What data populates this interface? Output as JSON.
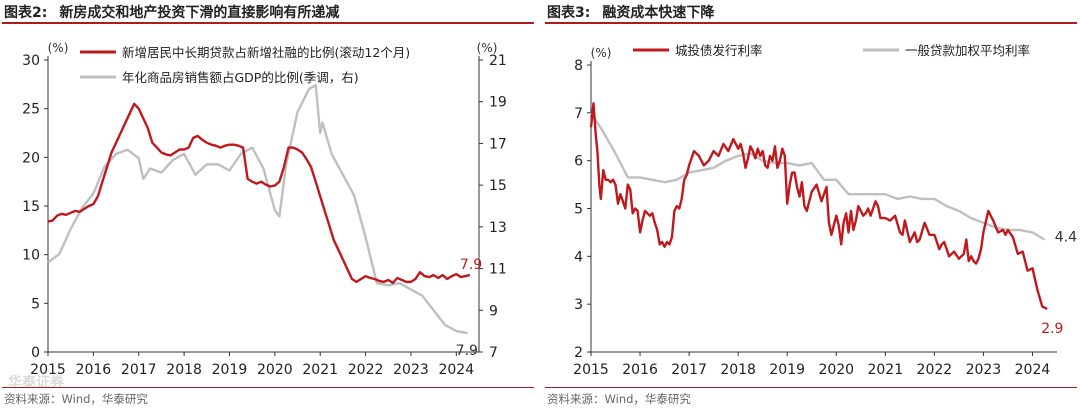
{
  "colors": {
    "red": "#c0191d",
    "gray": "#bfbfbf",
    "accent": "#b01c1c"
  },
  "watermark": "华泰证券",
  "chart_data": [
    {
      "type": "line",
      "fig_no": "图表2:",
      "title": "新房成交和地产投资下滑的直接影响有所递减",
      "source": "资料来源：Wind，华泰研究",
      "x_ticks": [
        "2015",
        "2016",
        "2017",
        "2018",
        "2019",
        "2020",
        "2021",
        "2022",
        "2023",
        "2024"
      ],
      "xlim": [
        2015.0,
        2024.5
      ],
      "y_left": {
        "unit": "(%)",
        "lim": [
          0,
          30
        ],
        "ticks": [
          "0",
          "5",
          "10",
          "15",
          "20",
          "25",
          "30"
        ]
      },
      "y_right": {
        "unit": "(%)",
        "lim": [
          7,
          21
        ],
        "ticks": [
          "7",
          "9",
          "11",
          "13",
          "15",
          "17",
          "19",
          "21"
        ]
      },
      "series": [
        {
          "name": "新增居民中长期贷款占新增社融的比例(滚动12个月)",
          "color_key": "red",
          "axis": "left",
          "end_label": "7.9",
          "x": [
            2015.0,
            2015.1,
            2015.2,
            2015.3,
            2015.4,
            2015.5,
            2015.6,
            2015.7,
            2015.8,
            2015.9,
            2016.0,
            2016.1,
            2016.2,
            2016.3,
            2016.4,
            2016.5,
            2016.6,
            2016.7,
            2016.8,
            2016.9,
            2017.0,
            2017.1,
            2017.2,
            2017.3,
            2017.4,
            2017.5,
            2017.6,
            2017.7,
            2017.8,
            2017.9,
            2018.0,
            2018.1,
            2018.2,
            2018.3,
            2018.4,
            2018.5,
            2018.6,
            2018.7,
            2018.8,
            2018.9,
            2019.0,
            2019.1,
            2019.2,
            2019.3,
            2019.4,
            2019.5,
            2019.6,
            2019.7,
            2019.8,
            2019.9,
            2020.0,
            2020.1,
            2020.2,
            2020.3,
            2020.4,
            2020.5,
            2020.6,
            2020.7,
            2020.8,
            2020.9,
            2021.0,
            2021.1,
            2021.2,
            2021.3,
            2021.4,
            2021.5,
            2021.6,
            2021.7,
            2021.8,
            2021.9,
            2022.0,
            2022.1,
            2022.2,
            2022.3,
            2022.4,
            2022.5,
            2022.6,
            2022.7,
            2022.8,
            2022.9,
            2023.0,
            2023.1,
            2023.2,
            2023.3,
            2023.4,
            2023.5,
            2023.6,
            2023.7,
            2023.8,
            2023.9,
            2024.0,
            2024.1,
            2024.2,
            2024.3
          ],
          "values": [
            13.4,
            13.5,
            14.0,
            14.2,
            14.1,
            14.3,
            14.5,
            14.4,
            14.7,
            15.0,
            15.2,
            16.0,
            17.5,
            19.0,
            20.5,
            21.5,
            22.5,
            23.5,
            24.5,
            25.5,
            25.0,
            24.0,
            23.0,
            21.5,
            21.0,
            20.5,
            20.3,
            20.2,
            20.5,
            20.8,
            20.8,
            21.0,
            22.0,
            22.2,
            21.8,
            21.5,
            21.3,
            21.2,
            21.0,
            21.2,
            21.3,
            21.3,
            21.2,
            21.0,
            17.8,
            17.5,
            17.3,
            17.5,
            17.2,
            17.0,
            17.1,
            17.5,
            19.0,
            21.0,
            21.0,
            20.8,
            20.5,
            19.8,
            19.0,
            17.5,
            16.0,
            14.5,
            13.0,
            11.5,
            10.5,
            9.5,
            8.5,
            7.5,
            7.2,
            7.5,
            7.8,
            7.6,
            7.5,
            7.3,
            7.2,
            7.4,
            7.1,
            7.6,
            7.4,
            7.2,
            7.2,
            7.5,
            8.2,
            7.8,
            7.7,
            7.9,
            7.6,
            7.9,
            7.5,
            7.8,
            8.0,
            7.7,
            7.8,
            7.9
          ]
        },
        {
          "name": "年化商品房销售额占GDP的比例(季调，右)",
          "color_key": "gray",
          "axis": "right",
          "end_label": "7.9",
          "x": [
            2015.0,
            2015.25,
            2015.5,
            2015.75,
            2016.0,
            2016.25,
            2016.5,
            2016.75,
            2017.0,
            2017.1,
            2017.25,
            2017.5,
            2017.75,
            2018.0,
            2018.25,
            2018.5,
            2018.75,
            2019.0,
            2019.25,
            2019.5,
            2019.75,
            2020.0,
            2020.1,
            2020.25,
            2020.5,
            2020.75,
            2020.9,
            2021.0,
            2021.05,
            2021.25,
            2021.5,
            2021.75,
            2022.0,
            2022.25,
            2022.5,
            2022.75,
            2023.0,
            2023.25,
            2023.5,
            2023.75,
            2024.0,
            2024.25
          ],
          "values": [
            11.3,
            11.7,
            12.9,
            13.9,
            14.6,
            15.9,
            16.5,
            16.7,
            16.3,
            15.3,
            15.8,
            15.6,
            16.2,
            16.5,
            15.5,
            16.0,
            16.0,
            15.7,
            16.5,
            16.8,
            15.8,
            13.8,
            13.5,
            16.0,
            18.5,
            19.6,
            19.8,
            17.5,
            18.0,
            16.5,
            15.5,
            14.5,
            12.5,
            10.3,
            10.2,
            10.3,
            10.0,
            9.7,
            9.0,
            8.3,
            8.0,
            7.9
          ]
        }
      ]
    },
    {
      "type": "line",
      "fig_no": "图表3:",
      "title": "融资成本快速下降",
      "source": "资料来源：Wind，华泰研究",
      "x_ticks": [
        "2015",
        "2016",
        "2017",
        "2018",
        "2019",
        "2020",
        "2021",
        "2022",
        "2023",
        "2024"
      ],
      "xlim": [
        2015.0,
        2024.5
      ],
      "y_left": {
        "unit": "(%)",
        "lim": [
          2,
          8
        ],
        "ticks": [
          "2",
          "3",
          "4",
          "5",
          "6",
          "7",
          "8"
        ]
      },
      "series": [
        {
          "name": "城投债发行利率",
          "color_key": "red",
          "axis": "left",
          "end_label": "2.9",
          "x": [
            2015.0,
            2015.05,
            2015.1,
            2015.13,
            2015.17,
            2015.2,
            2015.25,
            2015.3,
            2015.35,
            2015.4,
            2015.45,
            2015.5,
            2015.55,
            2015.6,
            2015.65,
            2015.7,
            2015.75,
            2015.8,
            2015.85,
            2015.9,
            2015.95,
            2016.0,
            2016.05,
            2016.1,
            2016.15,
            2016.2,
            2016.25,
            2016.3,
            2016.35,
            2016.4,
            2016.45,
            2016.5,
            2016.55,
            2016.6,
            2016.65,
            2016.7,
            2016.75,
            2016.8,
            2016.85,
            2016.9,
            2016.95,
            2017.0,
            2017.1,
            2017.2,
            2017.3,
            2017.4,
            2017.5,
            2017.6,
            2017.7,
            2017.8,
            2017.9,
            2018.0,
            2018.05,
            2018.1,
            2018.15,
            2018.2,
            2018.25,
            2018.3,
            2018.35,
            2018.4,
            2018.45,
            2018.5,
            2018.55,
            2018.6,
            2018.65,
            2018.7,
            2018.75,
            2018.8,
            2018.85,
            2018.9,
            2018.95,
            2019.0,
            2019.05,
            2019.1,
            2019.15,
            2019.2,
            2019.25,
            2019.3,
            2019.35,
            2019.4,
            2019.5,
            2019.6,
            2019.7,
            2019.8,
            2019.85,
            2019.9,
            2020.0,
            2020.05,
            2020.1,
            2020.15,
            2020.2,
            2020.25,
            2020.3,
            2020.35,
            2020.4,
            2020.45,
            2020.5,
            2020.55,
            2020.6,
            2020.65,
            2020.7,
            2020.75,
            2020.8,
            2020.85,
            2020.9,
            2021.0,
            2021.1,
            2021.2,
            2021.3,
            2021.35,
            2021.4,
            2021.5,
            2021.6,
            2021.65,
            2021.7,
            2021.8,
            2021.9,
            2022.0,
            2022.1,
            2022.15,
            2022.2,
            2022.3,
            2022.4,
            2022.5,
            2022.6,
            2022.65,
            2022.7,
            2022.75,
            2022.8,
            2022.85,
            2022.9,
            2022.95,
            2023.0,
            2023.1,
            2023.2,
            2023.3,
            2023.4,
            2023.45,
            2023.5,
            2023.6,
            2023.7,
            2023.8,
            2023.9,
            2024.0,
            2024.1,
            2024.2,
            2024.3
          ],
          "values": [
            6.7,
            7.2,
            6.5,
            6.2,
            5.5,
            5.2,
            5.8,
            5.6,
            5.6,
            5.55,
            5.6,
            5.5,
            5.1,
            5.3,
            5.15,
            5.0,
            5.5,
            5.4,
            4.9,
            5.0,
            4.95,
            4.5,
            4.75,
            4.95,
            4.9,
            4.85,
            4.9,
            4.7,
            4.55,
            4.25,
            4.3,
            4.2,
            4.3,
            4.25,
            4.4,
            4.95,
            5.05,
            5.0,
            5.2,
            5.6,
            5.7,
            5.9,
            6.2,
            6.1,
            5.9,
            6.0,
            6.2,
            6.1,
            6.35,
            6.2,
            6.45,
            6.25,
            6.35,
            6.15,
            5.85,
            6.05,
            6.3,
            6.2,
            6.05,
            6.25,
            6.1,
            6.2,
            5.9,
            5.85,
            6.1,
            6.0,
            6.3,
            5.85,
            6.0,
            6.25,
            6.1,
            5.1,
            5.5,
            5.75,
            5.75,
            5.45,
            5.25,
            5.55,
            5.05,
            4.95,
            5.35,
            5.5,
            5.15,
            5.45,
            4.7,
            4.45,
            4.85,
            4.65,
            4.25,
            4.7,
            4.9,
            4.5,
            4.95,
            4.55,
            4.75,
            5.05,
            4.95,
            4.85,
            4.9,
            5.0,
            4.85,
            5.0,
            5.15,
            5.05,
            4.8,
            4.8,
            4.75,
            4.85,
            4.5,
            4.45,
            4.75,
            4.3,
            4.5,
            4.3,
            4.35,
            4.7,
            4.45,
            4.45,
            4.15,
            4.25,
            4.3,
            4.0,
            4.1,
            3.95,
            4.05,
            4.35,
            3.9,
            4.0,
            3.9,
            3.85,
            3.95,
            4.15,
            4.5,
            4.95,
            4.75,
            4.5,
            4.55,
            4.45,
            4.55,
            4.4,
            4.05,
            4.1,
            3.7,
            3.75,
            3.3,
            2.95,
            2.9
          ]
        },
        {
          "name": "一般贷款加权平均利率",
          "color_key": "gray",
          "axis": "left",
          "end_label": "4.4",
          "x": [
            2015.0,
            2015.25,
            2015.5,
            2015.75,
            2016.0,
            2016.25,
            2016.5,
            2016.75,
            2017.0,
            2017.25,
            2017.5,
            2017.75,
            2018.0,
            2018.25,
            2018.5,
            2018.75,
            2019.0,
            2019.25,
            2019.5,
            2019.75,
            2020.0,
            2020.25,
            2020.5,
            2020.75,
            2021.0,
            2021.25,
            2021.5,
            2021.75,
            2022.0,
            2022.25,
            2022.5,
            2022.75,
            2023.0,
            2023.25,
            2023.5,
            2023.75,
            2024.0,
            2024.25
          ],
          "values": [
            7.0,
            6.6,
            6.15,
            5.65,
            5.65,
            5.6,
            5.55,
            5.6,
            5.75,
            5.8,
            5.85,
            6.0,
            6.1,
            6.15,
            6.0,
            5.95,
            5.95,
            5.9,
            5.95,
            5.6,
            5.6,
            5.3,
            5.3,
            5.3,
            5.3,
            5.2,
            5.25,
            5.2,
            5.2,
            5.05,
            4.95,
            4.8,
            4.7,
            4.6,
            4.55,
            4.55,
            4.5,
            4.35
          ]
        }
      ]
    }
  ]
}
